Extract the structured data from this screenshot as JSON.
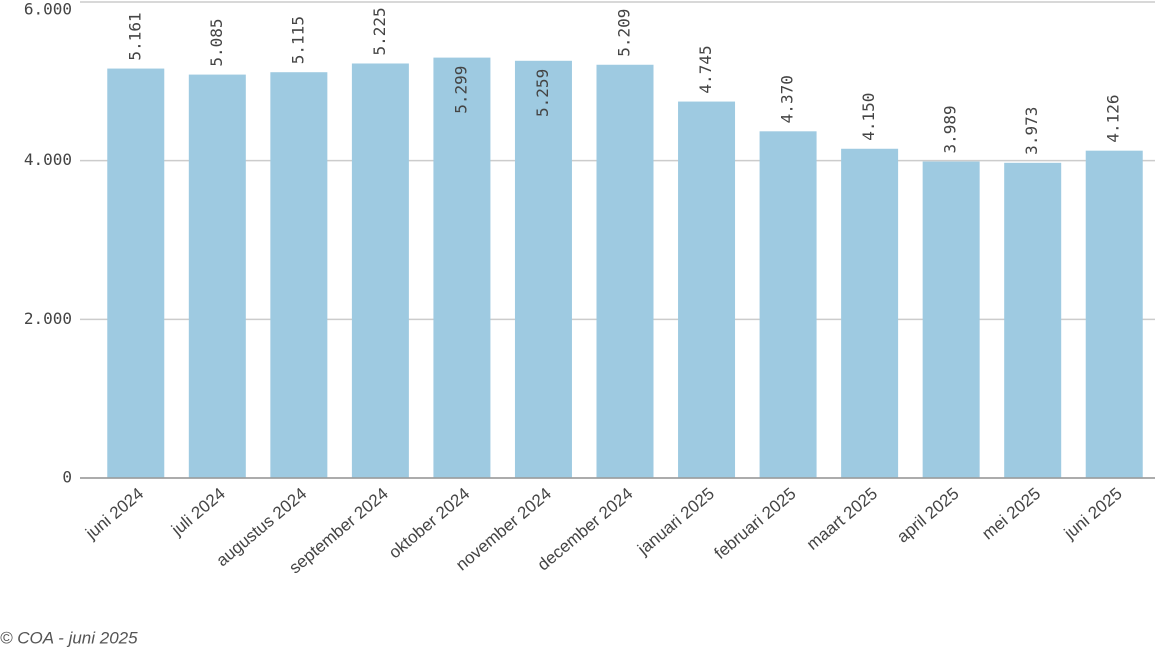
{
  "chart_data": {
    "type": "bar",
    "categories": [
      "juni 2024",
      "juli 2024",
      "augustus 2024",
      "september 2024",
      "oktober 2024",
      "november 2024",
      "december 2024",
      "januari 2025",
      "februari 2025",
      "maart 2025",
      "april 2025",
      "mei 2025",
      "juni 2025"
    ],
    "values": [
      5161,
      5085,
      5115,
      5225,
      5299,
      5259,
      5209,
      4745,
      4370,
      4150,
      3989,
      3973,
      4126
    ],
    "value_labels": [
      "5.161",
      "5.085",
      "5.115",
      "5.225",
      "5.299",
      "5.259",
      "5.209",
      "4.745",
      "4.370",
      "4.150",
      "3.989",
      "3.973",
      "4.126"
    ],
    "color": "#9ecae1",
    "ylim": [
      0,
      6000
    ],
    "yticks": [
      0,
      {
        "value": 2000,
        "label": "2.000"
      },
      {
        "value": 4000,
        "label": "4.000"
      },
      {
        "value": 6000,
        "label": "6.000"
      }
    ],
    "grid": true,
    "source": "© COA - juni 2025"
  }
}
